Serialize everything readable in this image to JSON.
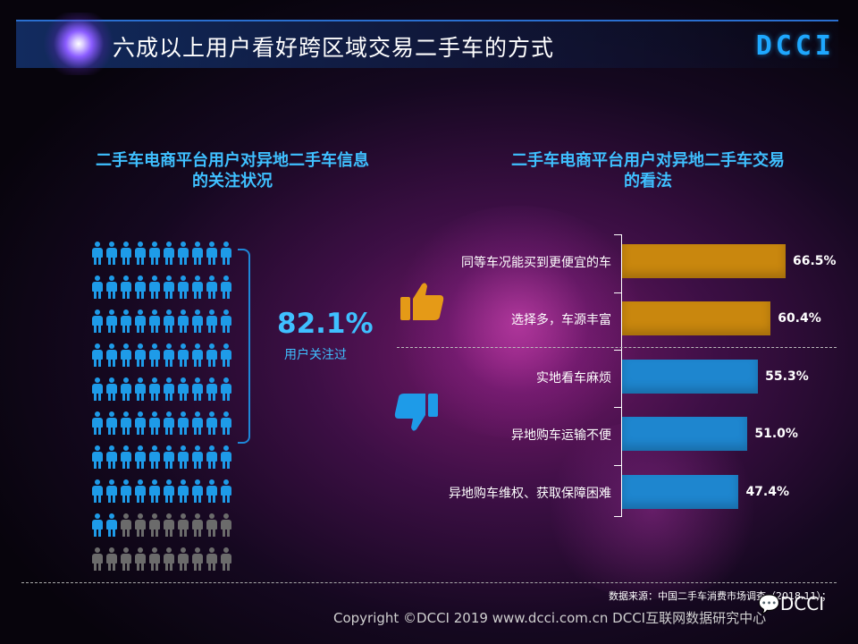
{
  "header": {
    "title": "六成以上用户看好跨区域交易二手车的方式",
    "brand": "DCCI"
  },
  "left_panel": {
    "subtitle_line1": "二手车电商平台用户对异地二手车信息",
    "subtitle_line2": "的关注状况",
    "percent": "82.1%",
    "percent_caption": "用户关注过",
    "colors": {
      "highlight": "#1e9be8",
      "muted": "#6b6b6b"
    }
  },
  "right_panel": {
    "subtitle_line1": "二手车电商平台用户对异地二手车交易",
    "subtitle_line2": "的看法",
    "positive_icon": "thumbs-up-icon",
    "negative_icon": "thumbs-down-icon"
  },
  "chart_data": [
    {
      "type": "pictograph",
      "total": 100,
      "highlighted": 82,
      "value_label": "82.1%",
      "caption": "用户关注过"
    },
    {
      "type": "bar",
      "orientation": "horizontal",
      "categories": [
        "同等车况能买到更便宜的车",
        "选择多，车源丰富",
        "实地看车麻烦",
        "异地购车运输不便",
        "异地购车维权、获取保障困难"
      ],
      "values": [
        66.5,
        60.4,
        55.3,
        51.0,
        47.4
      ],
      "value_labels": [
        "66.5%",
        "60.4%",
        "55.3%",
        "51.0%",
        "47.4%"
      ],
      "sentiment": [
        "positive",
        "positive",
        "negative",
        "negative",
        "negative"
      ],
      "colors": {
        "positive": "#c9870e",
        "negative": "#1e86cf"
      },
      "xlim": [
        0,
        100
      ]
    }
  ],
  "footer": {
    "source": "数据来源：中国二手车消费市场调查（2018.11）；",
    "copyright": "Copyright ©DCCI 2019  www.dcci.com.cn   DCCI互联网数据研究中心",
    "wechat_label": "DCCI"
  }
}
